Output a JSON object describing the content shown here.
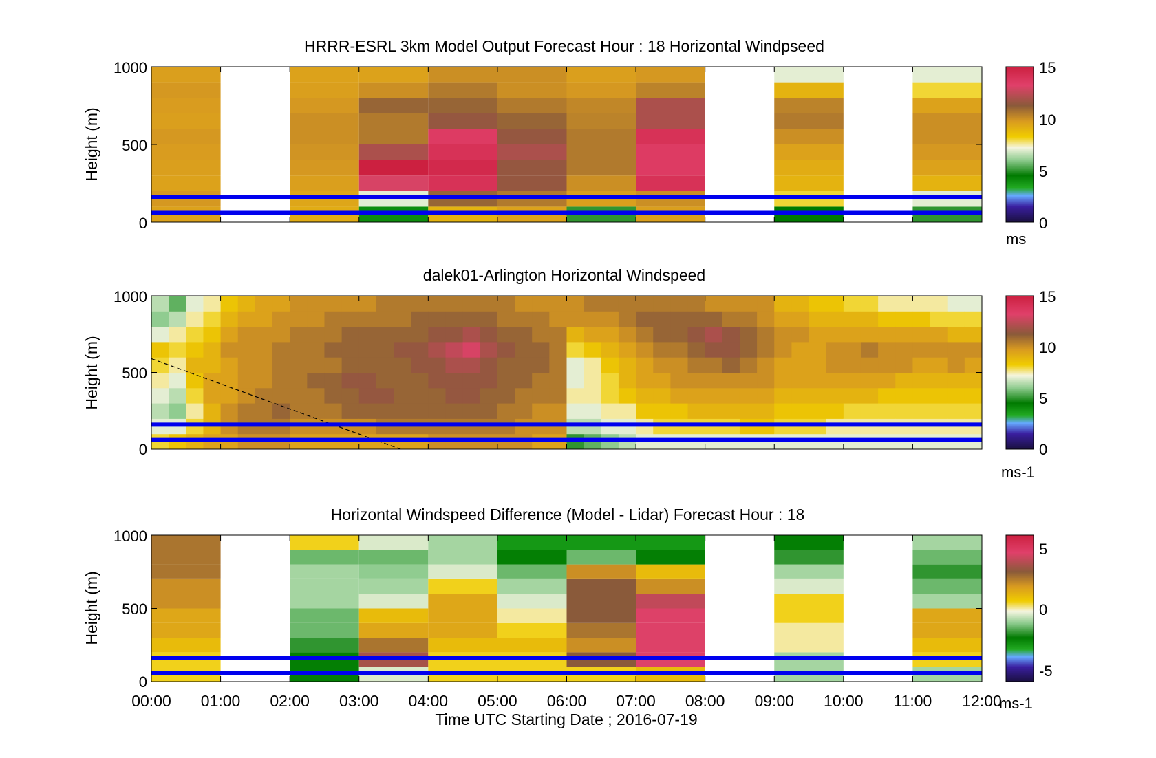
{
  "figure": {
    "xlabel": "Time UTC  Starting Date ; 2016-07-19"
  },
  "chart_data": [
    {
      "type": "heatmap",
      "title": "HRRR-ESRL 3km Model Output   Forecast Hour : 18 Horizontal Windpseed",
      "ylabel": "Height (m)",
      "xlabel": "",
      "x_ticks": [
        "00:00",
        "01:00",
        "02:00",
        "03:00",
        "04:00",
        "05:00",
        "06:00",
        "07:00",
        "08:00",
        "09:00",
        "10:00",
        "11:00",
        "12:00"
      ],
      "xlim_hours": [
        0,
        12
      ],
      "ylim": [
        0,
        1000
      ],
      "y_ticks": [
        "0",
        "500",
        "1000"
      ],
      "colorbar": {
        "ticks": [
          "0",
          "5",
          "10",
          "15"
        ],
        "range": [
          0,
          15
        ],
        "unit": "ms"
      },
      "reference_lines_m": [
        60,
        160
      ],
      "columns_hour": [
        0,
        1,
        2,
        3,
        4,
        5,
        6,
        7,
        8,
        9,
        10,
        11
      ],
      "columns": [
        [
          9.5,
          9.8,
          9.5,
          9.6,
          9.7,
          9.8,
          9.6,
          9.7,
          9.8,
          9.6
        ],
        null,
        [
          9.2,
          9.4,
          9.6,
          9.8,
          9.9,
          10,
          10,
          9.8,
          9.6,
          9.5
        ],
        [
          4,
          7,
          13,
          15,
          12,
          10.5,
          10.5,
          11,
          10,
          9.5
        ],
        [
          9,
          11,
          14,
          14.5,
          14,
          13.5,
          11.5,
          11,
          10.5,
          10
        ],
        [
          9.5,
          10.5,
          11.5,
          11.5,
          12,
          11.5,
          11,
          10.5,
          10,
          10
        ],
        [
          5,
          9.6,
          10,
          10.5,
          10.5,
          10.5,
          10.3,
          10.2,
          9.8,
          9.6
        ],
        [
          9.6,
          10,
          14,
          13.5,
          13.5,
          14,
          12,
          12,
          10.3,
          9.8
        ],
        null,
        [
          4.5,
          8,
          9,
          9.2,
          9.5,
          10,
          10.5,
          10.3,
          9,
          7
        ],
        null,
        [
          5,
          7,
          9,
          9.5,
          9.8,
          10,
          10,
          9.5,
          8,
          7
        ]
      ]
    },
    {
      "type": "heatmap",
      "title": "dalek01-Arlington  Horizontal Windspeed",
      "ylabel": "Height (m)",
      "xlabel": "",
      "x_ticks": [
        "00:00",
        "01:00",
        "02:00",
        "03:00",
        "04:00",
        "05:00",
        "06:00",
        "07:00",
        "08:00",
        "09:00",
        "10:00",
        "11:00",
        "12:00"
      ],
      "xlim_hours": [
        0,
        12
      ],
      "ylim": [
        0,
        1000
      ],
      "y_ticks": [
        "0",
        "500",
        "1000"
      ],
      "colorbar": {
        "ticks": [
          "0",
          "5",
          "10",
          "15"
        ],
        "range": [
          0,
          15
        ],
        "unit": "ms-1"
      },
      "reference_lines_m": [
        60,
        160
      ],
      "dashed_line": {
        "x_hours": [
          0,
          3.6
        ],
        "y_m": [
          590,
          0
        ]
      },
      "profiles_per_hour": 4,
      "profiles": [
        [
          8,
          7,
          6.5,
          7,
          7.5,
          8,
          8.5,
          7,
          6,
          6.5
        ],
        [
          8.5,
          7,
          6,
          6.5,
          7,
          7.5,
          8,
          7.5,
          6.5,
          5.5
        ],
        [
          9,
          8,
          7.5,
          8,
          8.5,
          9,
          8.5,
          8,
          7.5,
          7
        ],
        [
          9.5,
          9,
          9,
          9.5,
          9.5,
          9,
          9,
          8.5,
          8,
          7.5
        ],
        [
          9.5,
          10,
          10,
          9.5,
          9.5,
          9.5,
          10,
          9.5,
          9,
          8.5
        ],
        [
          10,
          10.5,
          10.5,
          10,
          10,
          10,
          10,
          10,
          9.5,
          9
        ],
        [
          10,
          10.5,
          10.5,
          10.5,
          10,
          10,
          10,
          10,
          9.5,
          9.5
        ],
        [
          10,
          10.5,
          11,
          10.5,
          10.5,
          10.5,
          10.5,
          10,
          10,
          9.5
        ],
        [
          9.5,
          10,
          10.5,
          10.5,
          10.5,
          10.5,
          10.5,
          10.5,
          10,
          10
        ],
        [
          9.5,
          10,
          10.5,
          10.5,
          11,
          10.5,
          10.5,
          10.5,
          10,
          10
        ],
        [
          9.5,
          10,
          10.5,
          11,
          11,
          10.5,
          11,
          10.5,
          10.5,
          10
        ],
        [
          9.5,
          10,
          11,
          11,
          11.5,
          11,
          11,
          11,
          10.5,
          10
        ],
        [
          9.5,
          10,
          11,
          11.5,
          11.5,
          11,
          11,
          11,
          10.5,
          10
        ],
        [
          9.5,
          10.5,
          11,
          11.5,
          11,
          11,
          11,
          11,
          10.5,
          10.5
        ],
        [
          9.5,
          10.5,
          11,
          11,
          11,
          11,
          11.5,
          11,
          10.5,
          10.5
        ],
        [
          9.5,
          10.5,
          11,
          11,
          11,
          11.5,
          11.5,
          11,
          11,
          10.5
        ],
        [
          10,
          10.5,
          11,
          11,
          11.5,
          11.5,
          12,
          11.5,
          11,
          10.5
        ],
        [
          10,
          10.5,
          11,
          11.5,
          11.5,
          12,
          12.5,
          11.5,
          11,
          10.5
        ],
        [
          10,
          10.5,
          11,
          11.5,
          11.5,
          12,
          13,
          12,
          11,
          10.5
        ],
        [
          10,
          10.5,
          11,
          11,
          11.5,
          11.5,
          12,
          11.5,
          11,
          10.5
        ],
        [
          10,
          10.5,
          10.5,
          11,
          11,
          11,
          11.5,
          11,
          10.5,
          10.5
        ],
        [
          10,
          10,
          10.5,
          10.5,
          11,
          11,
          11,
          11,
          10.5,
          10
        ],
        [
          9.5,
          10,
          10,
          10.5,
          10.5,
          11,
          11,
          10.5,
          10.5,
          10
        ],
        [
          9.5,
          10,
          10,
          10.5,
          10.5,
          10.5,
          10.5,
          10.5,
          10,
          10
        ],
        [
          5,
          6.5,
          7,
          7.5,
          7,
          7,
          8,
          9,
          10,
          10
        ],
        [
          5.5,
          6.5,
          7,
          7.5,
          7.5,
          7.5,
          8.5,
          9.5,
          10,
          10.5
        ],
        [
          6,
          7,
          7.5,
          8,
          8,
          8.5,
          9,
          9.5,
          10,
          10.5
        ],
        [
          6.5,
          7,
          7.5,
          8.5,
          9,
          9,
          9.5,
          10,
          10.5,
          10.5
        ],
        [
          7,
          7.5,
          8.5,
          9,
          9.5,
          9.5,
          10,
          10.5,
          11,
          10.5
        ],
        [
          7,
          8,
          8.5,
          9,
          9.5,
          10,
          10.5,
          11,
          11,
          10.5
        ],
        [
          7,
          8,
          8.5,
          9.5,
          10,
          10,
          10.5,
          11,
          11,
          10.5
        ],
        [
          7,
          8,
          9,
          9.5,
          10,
          10.5,
          11,
          11.5,
          11,
          10.5
        ],
        [
          7,
          8,
          9,
          9.5,
          10,
          10.5,
          11.5,
          12,
          11,
          10
        ],
        [
          7,
          8,
          9,
          9.5,
          10,
          11,
          11.5,
          11.5,
          10.5,
          10
        ],
        [
          7,
          8.5,
          9,
          9.5,
          10,
          10.5,
          11,
          11,
          10.5,
          10
        ],
        [
          7,
          8.5,
          9,
          9.5,
          10,
          10,
          10.5,
          10.5,
          10,
          10
        ],
        [
          7,
          8,
          8.5,
          9,
          9.5,
          9.5,
          10,
          10,
          9.5,
          9
        ],
        [
          7,
          8,
          8.5,
          9,
          9.5,
          9.5,
          9.5,
          10,
          9.5,
          9
        ],
        [
          7,
          8,
          8.5,
          9,
          9.5,
          9.5,
          9.5,
          9.5,
          9,
          8.5
        ],
        [
          7,
          7.5,
          8.5,
          9,
          9.5,
          10,
          10,
          9.5,
          9,
          8.5
        ],
        [
          7,
          7.5,
          8,
          9,
          9.5,
          10,
          10,
          9.5,
          9,
          8
        ],
        [
          7,
          7.5,
          8,
          9,
          9.5,
          10,
          10.5,
          9.5,
          9,
          8
        ],
        [
          7,
          7.5,
          8,
          8.5,
          9.5,
          10,
          10,
          9.5,
          8.5,
          7.5
        ],
        [
          7,
          7.5,
          8,
          8.5,
          9,
          10,
          10,
          9.5,
          8.5,
          7.5
        ],
        [
          7,
          7.5,
          8,
          8.5,
          9,
          9.5,
          10,
          9.5,
          8.5,
          7.5
        ],
        [
          7,
          7.5,
          8,
          8.5,
          9,
          9.5,
          10,
          9.5,
          8,
          7.5
        ],
        [
          7,
          7.5,
          8,
          8.5,
          9,
          10,
          10,
          9,
          8,
          7
        ],
        [
          7,
          7.5,
          8,
          8.5,
          9,
          9.5,
          10,
          9,
          8,
          7
        ]
      ]
    },
    {
      "type": "heatmap",
      "title": "Horizontal Windspeed Difference (Model - Lidar) Forecast Hour : 18",
      "ylabel": "Height (m)",
      "xlabel": "Time UTC  Starting Date ; 2016-07-19",
      "x_ticks": [
        "00:00",
        "01:00",
        "02:00",
        "03:00",
        "04:00",
        "05:00",
        "06:00",
        "07:00",
        "08:00",
        "09:00",
        "10:00",
        "11:00",
        "12:00"
      ],
      "xlim_hours": [
        0,
        12
      ],
      "ylim": [
        0,
        1000
      ],
      "y_ticks": [
        "0",
        "500",
        "1000"
      ],
      "colorbar": {
        "ticks": [
          "-5",
          "0",
          "5"
        ],
        "range": [
          -6,
          6
        ],
        "unit": "ms-1"
      },
      "reference_lines_m": [
        60,
        160
      ],
      "columns_hour": [
        0,
        1,
        2,
        3,
        4,
        5,
        6,
        7,
        8,
        9,
        10,
        11
      ],
      "columns": [
        [
          0.5,
          0.5,
          1,
          1.5,
          1.5,
          2,
          2,
          2.5,
          2.5,
          2.5
        ],
        null,
        [
          -2.5,
          -2.5,
          -2,
          -1.5,
          -1.5,
          -1,
          -1,
          -1,
          -1.5,
          0.5
        ],
        [
          -0.5,
          3.5,
          2.5,
          1.5,
          1,
          -0.5,
          -1,
          -1.2,
          -1.5,
          -0.5
        ],
        [
          0.5,
          0.5,
          1,
          1.5,
          1.5,
          1.5,
          0.5,
          -0.5,
          -1,
          -1
        ],
        [
          0.5,
          0.5,
          1,
          0.5,
          0,
          -0.5,
          -1,
          -1.5,
          -2.5,
          -3
        ],
        [
          0.5,
          3,
          2,
          2.5,
          3,
          3,
          3,
          2,
          -1.5,
          -3
        ],
        [
          1,
          4.5,
          4.5,
          4.5,
          4.5,
          4,
          2,
          1,
          -2.5,
          -3
        ],
        null,
        [
          -1,
          -1,
          0,
          0,
          0.5,
          0.5,
          -0.5,
          -1,
          -2,
          -2.5
        ],
        null,
        [
          -1,
          0.5,
          1,
          1.5,
          1.5,
          -1,
          -1.5,
          -2,
          -1.5,
          -1
        ]
      ]
    }
  ]
}
